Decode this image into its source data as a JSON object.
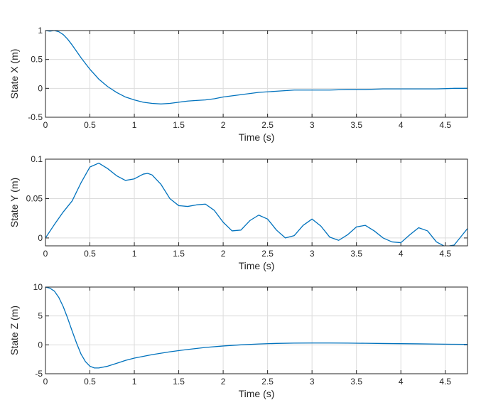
{
  "chart_data": [
    {
      "type": "line",
      "title": "",
      "xlabel": "Time (s)",
      "ylabel": "State X (m)",
      "xlim": [
        0,
        4.75
      ],
      "ylim": [
        -0.5,
        1
      ],
      "xticks": [
        "0",
        "0.5",
        "1",
        "1.5",
        "2",
        "2.5",
        "3",
        "3.5",
        "4",
        "4.5"
      ],
      "yticks": [
        "-0.5",
        "0",
        "0.5",
        "1"
      ],
      "grid": true,
      "line_color": "#0072BD",
      "series": [
        {
          "x": [
            0,
            0.05,
            0.1,
            0.15,
            0.2,
            0.25,
            0.3,
            0.35,
            0.4,
            0.45,
            0.5,
            0.6,
            0.7,
            0.8,
            0.9,
            1.0,
            1.1,
            1.2,
            1.3,
            1.4,
            1.5,
            1.6,
            1.7,
            1.8,
            1.9,
            2.0,
            2.2,
            2.4,
            2.6,
            2.8,
            3.0,
            3.2,
            3.4,
            3.6,
            3.8,
            4.0,
            4.2,
            4.4,
            4.6,
            4.75
          ],
          "values": [
            1.0,
            0.99,
            1.0,
            0.98,
            0.93,
            0.85,
            0.75,
            0.64,
            0.53,
            0.43,
            0.33,
            0.16,
            0.03,
            -0.07,
            -0.15,
            -0.2,
            -0.24,
            -0.26,
            -0.27,
            -0.26,
            -0.24,
            -0.22,
            -0.21,
            -0.2,
            -0.18,
            -0.15,
            -0.11,
            -0.07,
            -0.05,
            -0.03,
            -0.03,
            -0.03,
            -0.02,
            -0.02,
            -0.01,
            -0.01,
            -0.01,
            -0.01,
            0.0,
            0.0
          ]
        }
      ]
    },
    {
      "type": "line",
      "title": "",
      "xlabel": "Time (s)",
      "ylabel": "State Y (m)",
      "xlim": [
        0,
        4.75
      ],
      "ylim": [
        -0.01,
        0.1
      ],
      "xticks": [
        "0",
        "0.5",
        "1",
        "1.5",
        "2",
        "2.5",
        "3",
        "3.5",
        "4",
        "4.5"
      ],
      "yticks": [
        "0",
        "0.05",
        "0.1"
      ],
      "grid": true,
      "line_color": "#0072BD",
      "series": [
        {
          "x": [
            0,
            0.1,
            0.2,
            0.3,
            0.4,
            0.5,
            0.6,
            0.7,
            0.8,
            0.9,
            1.0,
            1.1,
            1.15,
            1.2,
            1.3,
            1.4,
            1.5,
            1.6,
            1.7,
            1.8,
            1.9,
            2.0,
            2.1,
            2.2,
            2.3,
            2.4,
            2.5,
            2.6,
            2.7,
            2.8,
            2.9,
            3.0,
            3.1,
            3.2,
            3.3,
            3.4,
            3.5,
            3.6,
            3.7,
            3.8,
            3.9,
            4.0,
            4.1,
            4.2,
            4.3,
            4.4,
            4.5,
            4.6,
            4.75
          ],
          "values": [
            0.0,
            0.017,
            0.033,
            0.047,
            0.07,
            0.09,
            0.095,
            0.088,
            0.079,
            0.073,
            0.075,
            0.081,
            0.082,
            0.08,
            0.068,
            0.05,
            0.041,
            0.04,
            0.042,
            0.043,
            0.035,
            0.02,
            0.009,
            0.01,
            0.022,
            0.029,
            0.024,
            0.01,
            0.0,
            0.003,
            0.016,
            0.024,
            0.015,
            0.001,
            -0.003,
            0.004,
            0.014,
            0.016,
            0.009,
            0.0,
            -0.005,
            -0.006,
            0.004,
            0.013,
            0.009,
            -0.005,
            -0.011,
            -0.009,
            0.012
          ]
        }
      ]
    },
    {
      "type": "line",
      "title": "",
      "xlabel": "Time (s)",
      "ylabel": "State Z (m)",
      "xlim": [
        0,
        4.75
      ],
      "ylim": [
        -5,
        10
      ],
      "xticks": [
        "0",
        "0.5",
        "1",
        "1.5",
        "2",
        "2.5",
        "3",
        "3.5",
        "4",
        "4.5"
      ],
      "yticks": [
        "-5",
        "0",
        "5",
        "10"
      ],
      "grid": true,
      "line_color": "#0072BD",
      "series": [
        {
          "x": [
            0,
            0.05,
            0.1,
            0.15,
            0.2,
            0.25,
            0.3,
            0.35,
            0.4,
            0.45,
            0.5,
            0.55,
            0.6,
            0.7,
            0.8,
            0.9,
            1.0,
            1.2,
            1.4,
            1.6,
            1.8,
            2.0,
            2.2,
            2.4,
            2.6,
            2.8,
            3.0,
            3.2,
            3.4,
            3.6,
            3.8,
            4.0,
            4.2,
            4.4,
            4.6,
            4.75
          ],
          "values": [
            10.0,
            9.8,
            9.3,
            8.2,
            6.6,
            4.6,
            2.4,
            0.3,
            -1.6,
            -2.9,
            -3.7,
            -4.0,
            -4.0,
            -3.7,
            -3.2,
            -2.7,
            -2.3,
            -1.7,
            -1.2,
            -0.8,
            -0.45,
            -0.2,
            0.0,
            0.15,
            0.25,
            0.3,
            0.32,
            0.32,
            0.3,
            0.27,
            0.23,
            0.2,
            0.17,
            0.13,
            0.1,
            0.08
          ]
        }
      ]
    }
  ]
}
